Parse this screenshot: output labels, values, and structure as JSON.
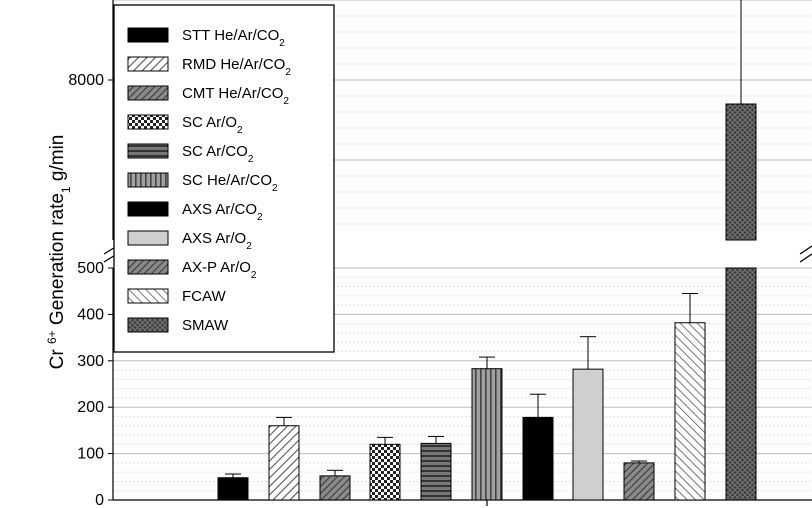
{
  "chart_data": {
    "type": "bar",
    "ylabel_parts": {
      "prefix": "Cr ",
      "sup": "6+",
      "mid": " Generation rate",
      "sub": "1",
      "suffix": " g/min"
    },
    "y_axis_ticks_lower": [
      "0",
      "100",
      "200",
      "300",
      "400",
      "500"
    ],
    "y_axis_ticks_upper": [
      "8000"
    ],
    "axis_break": {
      "lower_range": [
        0,
        500
      ],
      "upper_range": [
        6000,
        9000
      ]
    },
    "grid": true,
    "legend_position": "top-left",
    "series": [
      {
        "name": "STT He/Ar/CO2",
        "value": 48,
        "error": 8,
        "pattern": "solid-black"
      },
      {
        "name": "RMD He/Ar/CO2",
        "value": 160,
        "error": 18,
        "pattern": "diag-light"
      },
      {
        "name": "CMT He/Ar/CO2",
        "value": 52,
        "error": 12,
        "pattern": "diag-dark"
      },
      {
        "name": "SC Ar/O2",
        "value": 120,
        "error": 15,
        "pattern": "checker"
      },
      {
        "name": "SC Ar/CO2",
        "value": 122,
        "error": 15,
        "pattern": "horizontal"
      },
      {
        "name": "SC He/Ar/CO2",
        "value": 283,
        "error": 25,
        "pattern": "vertical"
      },
      {
        "name": "AXS Ar/CO2",
        "value": 178,
        "error": 50,
        "pattern": "solid-black"
      },
      {
        "name": "AXS Ar/O2",
        "value": 282,
        "error": 70,
        "pattern": "light-gray"
      },
      {
        "name": "AX-P Ar/O2",
        "value": 80,
        "error": 4,
        "pattern": "diag-dark"
      },
      {
        "name": "FCAW",
        "value": 382,
        "error": 63,
        "pattern": "diag-white"
      },
      {
        "name": "SMAW",
        "value": 7700,
        "error": 1800,
        "pattern": "crosshatch"
      }
    ],
    "legend": [
      {
        "pre": "STT He/Ar/CO",
        "sub": "2",
        "pattern": "solid-black"
      },
      {
        "pre": "RMD He/Ar/CO",
        "sub": "2",
        "pattern": "diag-light"
      },
      {
        "pre": "CMT He/Ar/CO",
        "sub": "2",
        "pattern": "diag-dark"
      },
      {
        "pre": "SC Ar/O",
        "sub": "2",
        "pattern": "checker"
      },
      {
        "pre": "SC Ar/CO",
        "sub": "2",
        "pattern": "horizontal"
      },
      {
        "pre": "SC He/Ar/CO",
        "sub": "2",
        "pattern": "vertical"
      },
      {
        "pre": "AXS Ar/CO",
        "sub": "2",
        "pattern": "solid-black"
      },
      {
        "pre": "AXS Ar/O",
        "sub": "2",
        "pattern": "light-gray"
      },
      {
        "pre": "AX-P Ar/O",
        "sub": "2",
        "pattern": "diag-dark"
      },
      {
        "pre": "FCAW",
        "sub": "",
        "pattern": "diag-white"
      },
      {
        "pre": "SMAW",
        "sub": "",
        "pattern": "crosshatch"
      }
    ]
  }
}
